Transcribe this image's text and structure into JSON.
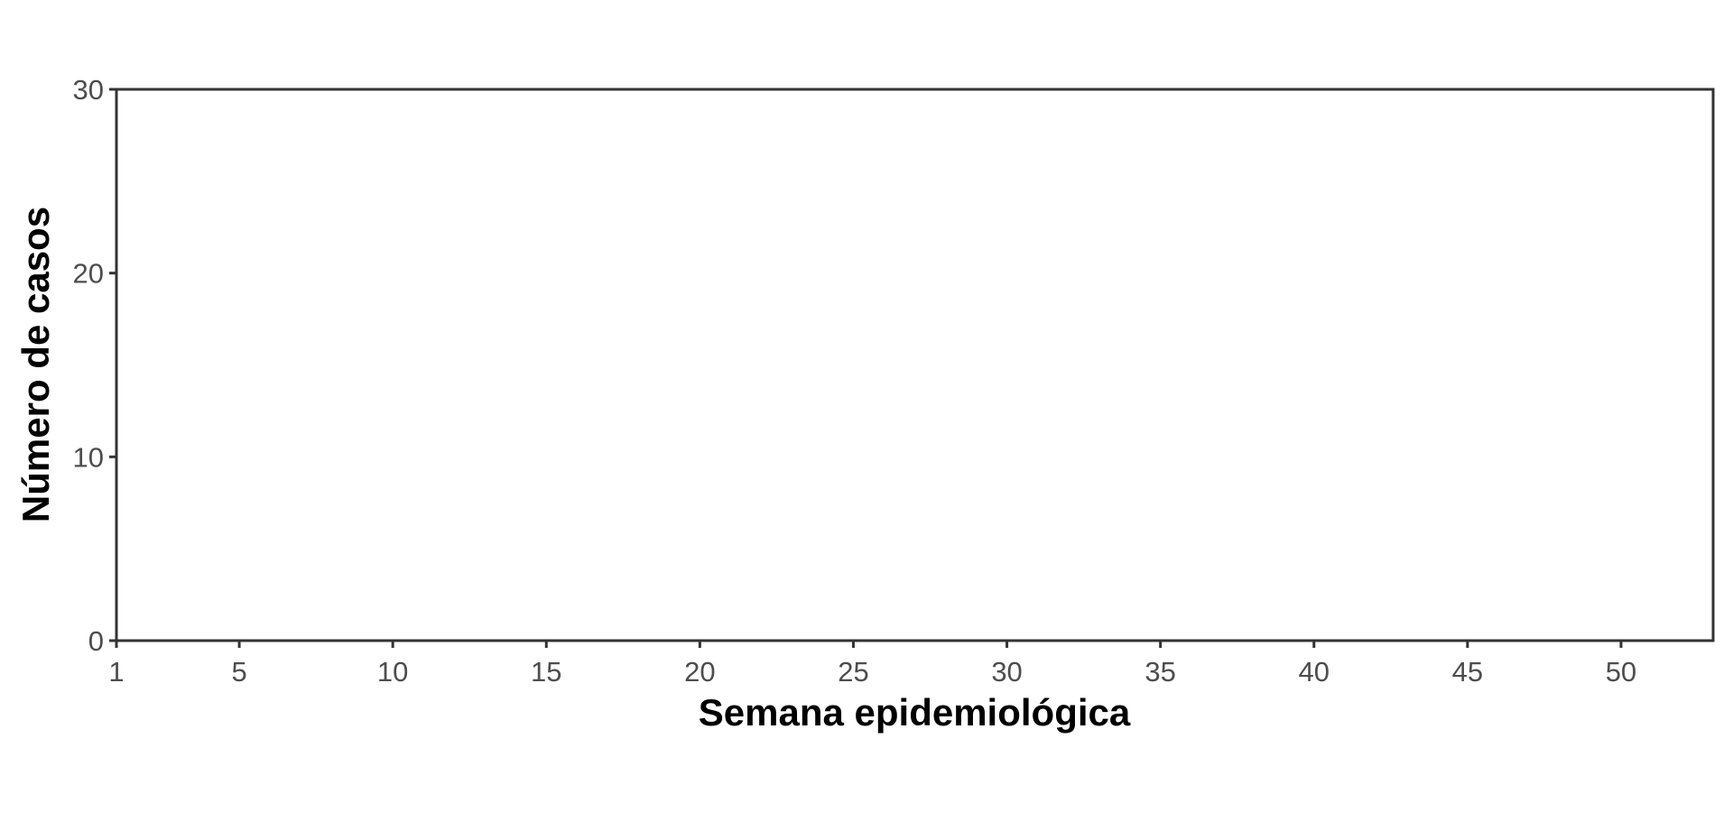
{
  "chart_data": {
    "type": "bar",
    "title": "",
    "xlabel": "Semana epidemiológica",
    "ylabel": "Número de casos",
    "xlim": [
      1,
      53
    ],
    "ylim": [
      0,
      30
    ],
    "xticks": [
      1,
      5,
      10,
      15,
      20,
      25,
      30,
      35,
      40,
      45,
      50
    ],
    "yticks": [
      0,
      10,
      20,
      30
    ],
    "series": [],
    "grid": false,
    "legend": "none",
    "colors": {
      "frame": "#333333",
      "tick_text": "#4d4d4d",
      "axis_title": "#000000",
      "background": "#ffffff"
    }
  }
}
